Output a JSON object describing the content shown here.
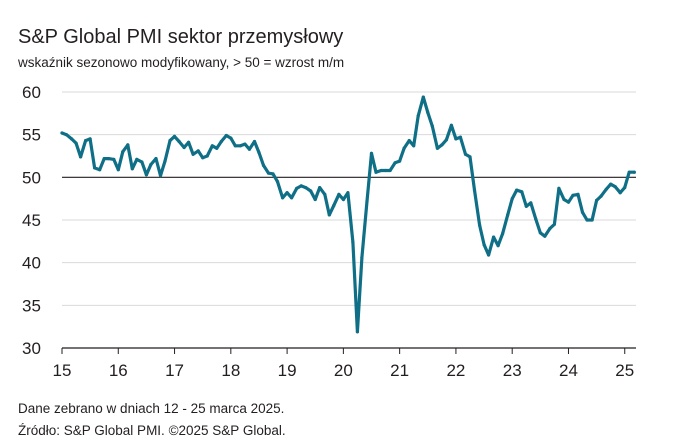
{
  "header": {
    "title": "S&P Global PMI sektor przemysłowy",
    "subtitle": "wskaźnik sezonowo modyfikowany, > 50 = wzrost m/m"
  },
  "footer": {
    "note": "Dane zebrano w dniach 12 - 25 marca 2025.",
    "source": "Źródło: S&P Global PMI. ©2025 S&P Global."
  },
  "colors": {
    "line": "#0e6f86",
    "grid": "#d9d9d9",
    "reference": "#231f20"
  },
  "chart_data": {
    "type": "line",
    "title": "S&P Global PMI sektor przemysłowy",
    "subtitle": "wskaźnik sezonowo modyfikowany, > 50 = wzrost m/m",
    "xlabel": "",
    "ylabel": "",
    "ylim": [
      30,
      60
    ],
    "yticks": [
      30,
      35,
      40,
      45,
      50,
      55,
      60
    ],
    "xticks": [
      2015,
      2016,
      2017,
      2018,
      2019,
      2020,
      2021,
      2022,
      2023,
      2024,
      2025
    ],
    "xtick_labels": [
      "15",
      "16",
      "17",
      "18",
      "19",
      "20",
      "21",
      "22",
      "23",
      "24",
      "25"
    ],
    "xlim": [
      2015.0,
      2025.2
    ],
    "reference_line": 50,
    "grid": "horizontal",
    "series": [
      {
        "x": [
          2015.0,
          2015.08,
          2015.17,
          2015.25,
          2015.33,
          2015.42,
          2015.5,
          2015.58,
          2015.67,
          2015.75,
          2015.83,
          2015.92,
          2016.0,
          2016.08,
          2016.17,
          2016.25,
          2016.33,
          2016.42,
          2016.5,
          2016.58,
          2016.67,
          2016.75,
          2016.83,
          2016.92,
          2017.0,
          2017.08,
          2017.17,
          2017.25,
          2017.33,
          2017.42,
          2017.5,
          2017.58,
          2017.67,
          2017.75,
          2017.83,
          2017.92,
          2018.0,
          2018.08,
          2018.17,
          2018.25,
          2018.33,
          2018.42,
          2018.5,
          2018.58,
          2018.67,
          2018.75,
          2018.83,
          2018.92,
          2019.0,
          2019.08,
          2019.17,
          2019.25,
          2019.33,
          2019.42,
          2019.5,
          2019.58,
          2019.67,
          2019.75,
          2019.83,
          2019.92,
          2020.0,
          2020.08,
          2020.17,
          2020.25,
          2020.33,
          2020.42,
          2020.5,
          2020.58,
          2020.67,
          2020.75,
          2020.83,
          2020.92,
          2021.0,
          2021.08,
          2021.17,
          2021.25,
          2021.33,
          2021.42,
          2021.5,
          2021.58,
          2021.67,
          2021.75,
          2021.83,
          2021.92,
          2022.0,
          2022.08,
          2022.17,
          2022.25,
          2022.33,
          2022.42,
          2022.5,
          2022.58,
          2022.67,
          2022.75,
          2022.83,
          2022.92,
          2023.0,
          2023.08,
          2023.17,
          2023.25,
          2023.33,
          2023.42,
          2023.5,
          2023.58,
          2023.67,
          2023.75,
          2023.83,
          2023.92,
          2024.0,
          2024.08,
          2024.17,
          2024.25,
          2024.33,
          2024.42,
          2024.5,
          2024.58,
          2024.67,
          2024.75,
          2024.83,
          2024.92,
          2025.0,
          2025.08,
          2025.17
        ],
        "values": [
          55.2,
          55.0,
          54.5,
          54.0,
          52.4,
          54.3,
          54.5,
          51.1,
          50.9,
          52.2,
          52.2,
          52.1,
          50.9,
          53.0,
          53.8,
          51.0,
          52.1,
          51.8,
          50.3,
          51.5,
          52.2,
          50.2,
          51.9,
          54.3,
          54.8,
          54.2,
          53.5,
          54.1,
          52.7,
          53.1,
          52.3,
          52.5,
          53.7,
          53.4,
          54.2,
          54.9,
          54.6,
          53.7,
          53.7,
          53.9,
          53.3,
          54.2,
          52.9,
          51.4,
          50.5,
          50.4,
          49.5,
          47.6,
          48.2,
          47.6,
          48.7,
          49.0,
          48.8,
          48.4,
          47.4,
          48.8,
          48.0,
          45.6,
          46.7,
          48.0,
          47.4,
          48.2,
          42.4,
          31.9,
          40.6,
          47.2,
          52.8,
          50.6,
          50.8,
          50.8,
          50.8,
          51.7,
          51.9,
          53.4,
          54.3,
          53.7,
          57.2,
          59.4,
          57.6,
          56.0,
          53.4,
          53.8,
          54.4,
          56.1,
          54.5,
          54.7,
          52.7,
          52.4,
          48.5,
          44.4,
          42.1,
          40.9,
          43.0,
          42.0,
          43.4,
          45.6,
          47.5,
          48.5,
          48.3,
          46.6,
          47.0,
          45.1,
          43.5,
          43.1,
          44.0,
          44.5,
          48.7,
          47.4,
          47.1,
          47.9,
          48.0,
          45.9,
          45.0,
          45.0,
          47.3,
          47.8,
          48.6,
          49.2,
          48.9,
          48.2,
          48.8,
          50.6,
          50.6
        ]
      }
    ]
  }
}
